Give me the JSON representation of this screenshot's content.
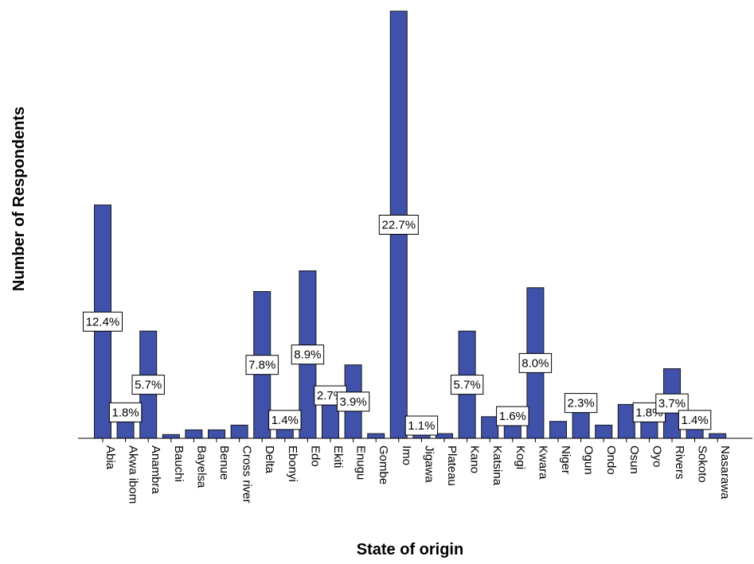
{
  "chart_data": {
    "type": "bar",
    "title": "",
    "xlabel": "State of origin",
    "ylabel": "Number of Respondents",
    "categories": [
      "Abia",
      "Akwa ibom",
      "Anambra",
      "Bauchi",
      "Bayelsa",
      "Benue",
      "Cross river",
      "Delta",
      "Ebonyi",
      "Edo",
      "Ekiti",
      "Enugu",
      "Gombe",
      "Imo",
      "Jigawa",
      "Plateau",
      "Kano",
      "Katsina",
      "Kogi",
      "Kwara",
      "Niger",
      "Ogun",
      "Ondo",
      "Osun",
      "Oyo",
      "Rivers",
      "Sokoto",
      "Nasarawa"
    ],
    "values": [
      12.4,
      1.8,
      5.7,
      0.2,
      0.45,
      0.45,
      0.7,
      7.8,
      1.4,
      8.9,
      2.7,
      3.9,
      0.25,
      22.7,
      1.1,
      0.25,
      5.7,
      1.15,
      1.6,
      8.0,
      0.9,
      2.3,
      0.7,
      1.8,
      1.8,
      3.7,
      1.4,
      0.25
    ],
    "data_labels": [
      "12.4%",
      "1.8%",
      "5.7%",
      "",
      "",
      "",
      "",
      "7.8%",
      "1.4%",
      "8.9%",
      "2.7%",
      "3.9%",
      "",
      "22.7%",
      "1.1%",
      "",
      "5.7%",
      "",
      "1.6%",
      "8.0%",
      "",
      "2.3%",
      "",
      "",
      "1.8%",
      "3.7%",
      "1.4%",
      ""
    ],
    "value_unit": "percent of respondents",
    "bar_color": "#3f51a8",
    "grid": false,
    "legend": "none"
  }
}
